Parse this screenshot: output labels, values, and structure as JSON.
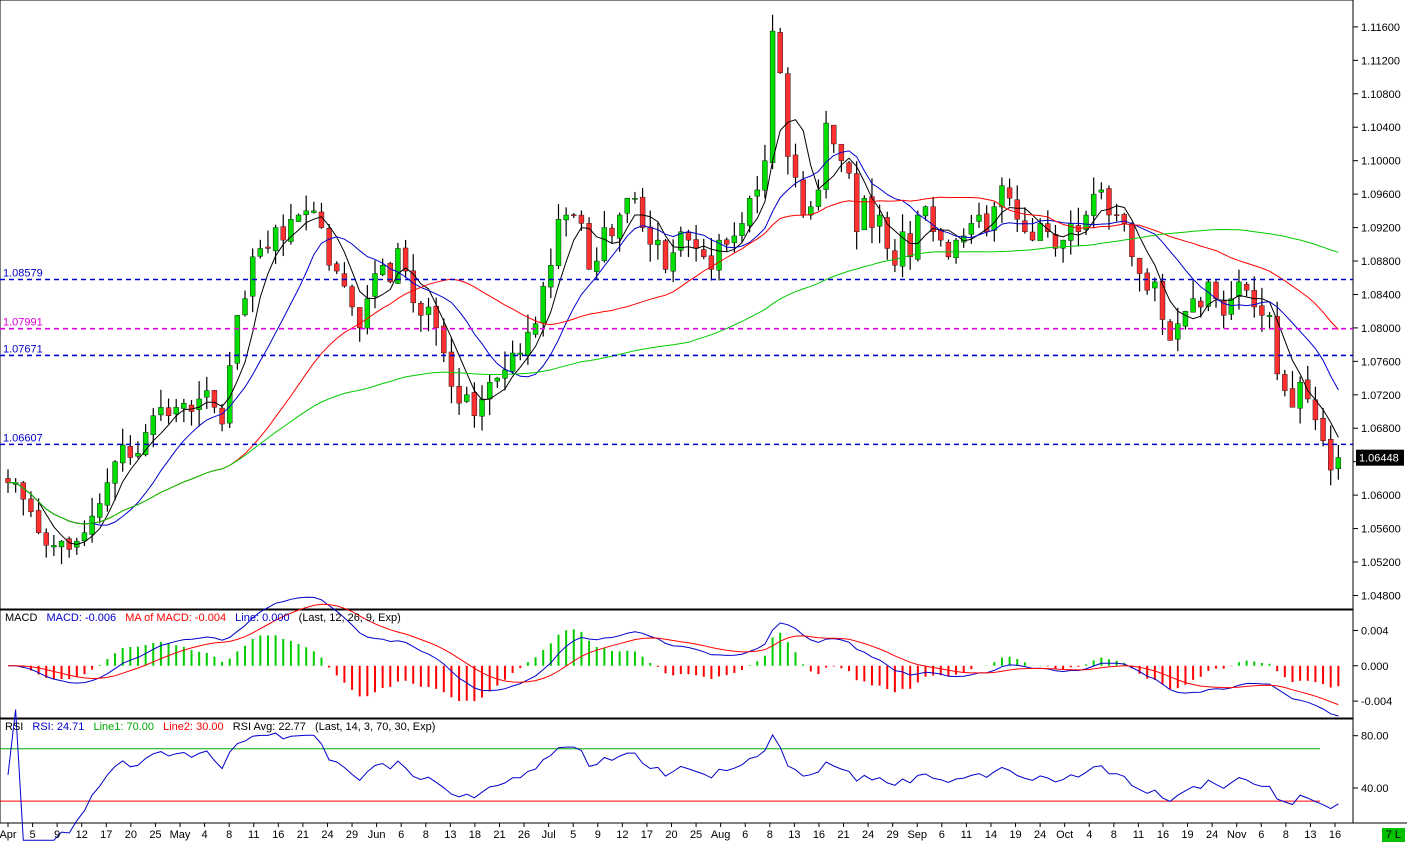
{
  "chart_data": {
    "type": "candlestick",
    "instrument_prices_axis": [
      "1.04800",
      "1.05200",
      "1.05600",
      "1.06000",
      "1.06400",
      "1.06800",
      "1.07200",
      "1.07600",
      "1.08000",
      "1.08400",
      "1.08800",
      "1.09200",
      "1.09600",
      "1.10000",
      "1.10400",
      "1.10800",
      "1.11200",
      "1.11600"
    ],
    "last_price_label": "1.06448",
    "horizontal_levels": [
      {
        "label": "1.08579",
        "value": 1.08579,
        "color": "#0000cc"
      },
      {
        "label": "1.07991",
        "value": 1.07991,
        "color": "#e000e0"
      },
      {
        "label": "1.07671",
        "value": 1.07671,
        "color": "#0000cc"
      },
      {
        "label": "1.06607",
        "value": 1.06607,
        "color": "#0000cc"
      }
    ],
    "x_tick_labels": [
      "Apr",
      "5",
      "9",
      "12",
      "17",
      "20",
      "25",
      "May",
      "4",
      "8",
      "11",
      "16",
      "21",
      "24",
      "29",
      "Jun",
      "6",
      "8",
      "13",
      "18",
      "21",
      "26",
      "Jul",
      "5",
      "9",
      "12",
      "17",
      "20",
      "25",
      "Aug",
      "6",
      "8",
      "13",
      "16",
      "21",
      "24",
      "29",
      "Sep",
      "6",
      "11",
      "14",
      "19",
      "24",
      "Oct",
      "4",
      "8",
      "11",
      "16",
      "19",
      "24",
      "Nov",
      "6",
      "8",
      "13",
      "16"
    ],
    "closes": [
      1.0615,
      1.0615,
      1.0595,
      1.058,
      1.0555,
      1.054,
      1.054,
      1.0545,
      1.0535,
      1.0545,
      1.0555,
      1.0575,
      1.059,
      1.0615,
      1.064,
      1.066,
      1.0645,
      1.065,
      1.0675,
      1.0695,
      1.0705,
      1.0695,
      1.0705,
      1.071,
      1.07,
      1.0715,
      1.0725,
      1.0705,
      1.0685,
      1.0755,
      1.0815,
      1.0835,
      1.0885,
      1.0895,
      1.0895,
      1.092,
      1.0905,
      1.093,
      1.0935,
      1.094,
      1.094,
      1.092,
      1.0875,
      1.0868,
      1.085,
      1.0825,
      1.08,
      1.0835,
      1.0865,
      1.0875,
      1.0855,
      1.0895,
      1.0868,
      1.083,
      1.0815,
      1.0825,
      1.08,
      1.077,
      1.073,
      1.071,
      1.072,
      1.0695,
      1.0715,
      1.0735,
      1.074,
      1.075,
      1.077,
      1.077,
      1.0795,
      1.0805,
      1.085,
      1.0875,
      1.093,
      1.0935,
      1.0935,
      1.0925,
      1.087,
      1.088,
      1.092,
      1.091,
      1.0935,
      1.0955,
      1.0955,
      1.092,
      1.09,
      1.0905,
      1.087,
      1.089,
      1.0915,
      1.0905,
      1.0895,
      1.0885,
      1.087,
      1.0905,
      1.09,
      1.091,
      1.0925,
      1.0955,
      1.0965,
      1.1,
      1.1155,
      1.1105,
      1.1005,
      1.098,
      1.0935,
      1.0945,
      1.0965,
      1.1045,
      1.102,
      1.1,
      1.0985,
      1.0915,
      1.0955,
      1.092,
      1.0935,
      1.0895,
      1.0875,
      1.0915,
      1.0885,
      1.0935,
      1.0945,
      1.0915,
      1.0905,
      1.0885,
      1.0905,
      1.091,
      1.0925,
      1.0935,
      1.0915,
      1.0945,
      1.097,
      1.0955,
      1.093,
      1.0915,
      1.0905,
      1.0925,
      1.0915,
      1.0895,
      1.0905,
      1.0925,
      1.0915,
      1.0935,
      1.096,
      1.0965,
      1.0935,
      1.0935,
      1.0925,
      1.0885,
      1.0865,
      1.0845,
      1.0855,
      1.081,
      1.0785,
      1.0805,
      1.082,
      1.0835,
      1.0825,
      1.0855,
      1.0835,
      1.0815,
      1.0835,
      1.0855,
      1.0845,
      1.0825,
      1.0815,
      1.0815,
      1.0745,
      1.0725,
      1.0705,
      1.0735,
      1.0715,
      1.069,
      1.0665,
      1.063,
      1.0645
    ],
    "moving_averages": [
      {
        "name": "",
        "color": "#000000"
      },
      {
        "name": "",
        "color": "#0000cc"
      },
      {
        "name": "",
        "color": "#ff0000"
      },
      {
        "name": "",
        "color": "#00cc00"
      }
    ],
    "macd": {
      "title": "MACD",
      "macd_text": "MACD: -0.006",
      "signal_text": "MA of MACD: -0.004",
      "line_text": "Line: 0.000",
      "params_text": "(Last, 12, 26, 9, Exp)",
      "axis_ticks": [
        "0.004",
        "0.000",
        "-0.004"
      ],
      "axis_values": [
        0.004,
        0.0,
        -0.004
      ]
    },
    "rsi": {
      "title": "RSI",
      "rsi_text": "RSI: 24.71",
      "line1_text": "Line1: 70.00",
      "line2_text": "Line2: 30.00",
      "avg_text": "RSI Avg: 22.77",
      "params_text": "(Last, 14, 3, 70, 30, Exp)",
      "axis_ticks": [
        "80.00",
        "40.00"
      ],
      "axis_values": [
        80,
        40
      ],
      "line1": 70,
      "line2": 30
    },
    "colors": {
      "up": "#00dd00",
      "down": "#ff3030",
      "wick": "#000000",
      "rsi": "#0000cc",
      "macd": "#0000cc",
      "signal": "#ff0000",
      "hist_up": "#00cc00",
      "hist_down": "#ff0000",
      "level_upper": "#00aa00",
      "level_lower": "#ff0000"
    }
  },
  "corner_badge": "7 L"
}
